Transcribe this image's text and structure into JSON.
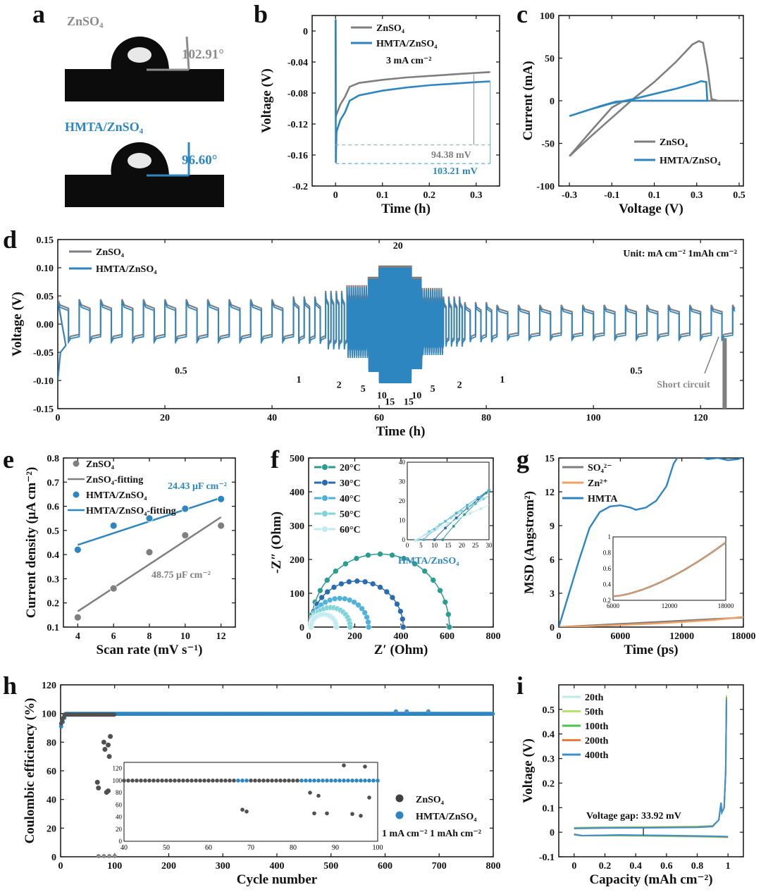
{
  "colors": {
    "zn": "#7f7f7f",
    "hm": "#2e86c1",
    "orange": "#f0a060"
  },
  "panels": [
    {
      "id": "a",
      "label": "a",
      "images": [
        {
          "title": "ZnSO₄",
          "angle": "102.91°",
          "color": "#8c8c8c"
        },
        {
          "title": "HMTA/ZnSO₄",
          "angle": "96.60°",
          "color": "#2e86c1"
        }
      ]
    },
    {
      "id": "b",
      "label": "b"
    },
    {
      "id": "c",
      "label": "c"
    },
    {
      "id": "d",
      "label": "d"
    },
    {
      "id": "e",
      "label": "e"
    },
    {
      "id": "f",
      "label": "f"
    },
    {
      "id": "g",
      "label": "g"
    },
    {
      "id": "h",
      "label": "h"
    },
    {
      "id": "i",
      "label": "i"
    }
  ],
  "chart_data": [
    {
      "id": "b",
      "type": "line",
      "xlabel": "Time (h)",
      "ylabel": "Voltage (V)",
      "xlim": [
        -0.05,
        0.35
      ],
      "ylim": [
        -0.2,
        0.02
      ],
      "xticks": [
        0,
        0.1,
        0.2,
        0.3
      ],
      "yticks": [
        0.0,
        -0.04,
        -0.08,
        -0.12,
        -0.16,
        -0.2
      ],
      "series": [
        {
          "name": "ZnSO₄",
          "color": "#7f7f7f",
          "points": [
            [
              0,
              0.015
            ],
            [
              0.0005,
              -0.11
            ],
            [
              0.01,
              -0.095
            ],
            [
              0.02,
              -0.085
            ],
            [
              0.03,
              -0.072
            ],
            [
              0.05,
              -0.067
            ],
            [
              0.1,
              -0.063
            ],
            [
              0.15,
              -0.06
            ],
            [
              0.2,
              -0.058
            ],
            [
              0.25,
              -0.056
            ],
            [
              0.3,
              -0.054
            ],
            [
              0.33,
              -0.053
            ]
          ]
        },
        {
          "name": "HMTA/ZnSO₄",
          "color": "#2e86c1",
          "points": [
            [
              0,
              0.015
            ],
            [
              0.0005,
              -0.17
            ],
            [
              0.002,
              -0.13
            ],
            [
              0.01,
              -0.115
            ],
            [
              0.02,
              -0.105
            ],
            [
              0.03,
              -0.09
            ],
            [
              0.05,
              -0.083
            ],
            [
              0.1,
              -0.077
            ],
            [
              0.15,
              -0.073
            ],
            [
              0.2,
              -0.07
            ],
            [
              0.25,
              -0.068
            ],
            [
              0.3,
              -0.066
            ],
            [
              0.33,
              -0.065
            ]
          ]
        }
      ],
      "annotations": [
        "3 mA cm⁻²",
        "94.38 mV",
        "103.21 mV"
      ]
    },
    {
      "id": "c",
      "type": "line",
      "xlabel": "Voltage (V)",
      "ylabel": "Current (mA)",
      "xlim": [
        -0.35,
        0.52
      ],
      "ylim": [
        -100,
        100
      ],
      "xticks": [
        -0.3,
        -0.1,
        0.1,
        0.3,
        0.5
      ],
      "xtick_labels": [
        "-0.3",
        "-0.1",
        "0.1",
        "0.3",
        "0.5"
      ],
      "yticks": [
        100,
        50,
        0,
        -50,
        -100
      ],
      "series": [
        {
          "name": "ZnSO₄",
          "color": "#7f7f7f",
          "points": [
            [
              -0.3,
              -65
            ],
            [
              -0.2,
              -42
            ],
            [
              -0.1,
              -20
            ],
            [
              0,
              2
            ],
            [
              0.1,
              22
            ],
            [
              0.2,
              45
            ],
            [
              0.28,
              66
            ],
            [
              0.31,
              70
            ],
            [
              0.33,
              68
            ],
            [
              0.35,
              40
            ],
            [
              0.37,
              2
            ],
            [
              0.4,
              0
            ],
            [
              0.5,
              0
            ],
            [
              0.3,
              0
            ],
            [
              0,
              0
            ],
            [
              -0.05,
              -1
            ],
            [
              -0.1,
              -8
            ],
            [
              -0.2,
              -36
            ],
            [
              -0.3,
              -65
            ]
          ]
        },
        {
          "name": "HMTA/ZnSO₄",
          "color": "#2e86c1",
          "points": [
            [
              -0.3,
              -18
            ],
            [
              -0.2,
              -10
            ],
            [
              -0.1,
              -3
            ],
            [
              0,
              2
            ],
            [
              0.1,
              8
            ],
            [
              0.2,
              14
            ],
            [
              0.3,
              21
            ],
            [
              0.32,
              23
            ],
            [
              0.345,
              22
            ],
            [
              0.35,
              0
            ],
            [
              0.3,
              0
            ],
            [
              0,
              0
            ],
            [
              -0.08,
              -1
            ],
            [
              -0.15,
              -6
            ],
            [
              -0.3,
              -18
            ]
          ]
        }
      ]
    },
    {
      "id": "d",
      "type": "line",
      "xlabel": "Time (h)",
      "ylabel": "Voltage (V)",
      "xlim": [
        0,
        128
      ],
      "ylim": [
        -0.15,
        0.15
      ],
      "xticks": [
        0,
        20,
        40,
        60,
        80,
        100,
        120
      ],
      "yticks": [
        0.15,
        0.1,
        0.05,
        0.0,
        -0.05,
        -0.1,
        -0.15
      ],
      "ytick_labels": [
        "0.15",
        "0.10",
        "0.05",
        "0.00",
        "-0.05",
        "-0.10",
        "-0.15"
      ],
      "series": [
        {
          "name": "ZnSO₄",
          "color": "#7f7f7f"
        },
        {
          "name": "HMTA/ZnSO₄",
          "color": "#2e86c1"
        }
      ],
      "segments": [
        {
          "t0": 0,
          "t1": 44,
          "amp_pos": 0.04,
          "amp_neg": -0.032,
          "period": 4
        },
        {
          "t0": 44,
          "t1": 50,
          "amp_pos": 0.045,
          "amp_neg": -0.035,
          "period": 2
        },
        {
          "t0": 50,
          "t1": 54,
          "amp_pos": 0.055,
          "amp_neg": -0.045,
          "period": 1
        },
        {
          "t0": 54,
          "t1": 58,
          "amp_pos": 0.065,
          "amp_neg": -0.06,
          "period": 0.4
        },
        {
          "t0": 58,
          "t1": 60,
          "amp_pos": 0.08,
          "amp_neg": -0.085,
          "period": 0.2
        },
        {
          "t0": 60,
          "t1": 66,
          "amp_pos": 0.1,
          "amp_neg": -0.105,
          "period": 0.13
        },
        {
          "t0": 66,
          "t1": 68,
          "amp_pos": 0.08,
          "amp_neg": -0.08,
          "period": 0.2
        },
        {
          "t0": 68,
          "t1": 72,
          "amp_pos": 0.06,
          "amp_neg": -0.055,
          "period": 0.4
        },
        {
          "t0": 72,
          "t1": 76,
          "amp_pos": 0.045,
          "amp_neg": -0.04,
          "period": 1
        },
        {
          "t0": 76,
          "t1": 82,
          "amp_pos": 0.035,
          "amp_neg": -0.032,
          "period": 2
        },
        {
          "t0": 82,
          "t1": 128,
          "amp_pos": 0.03,
          "amp_neg": -0.028,
          "period": 4
        }
      ],
      "annotations": [
        "Unit: mA cm⁻²  1mAh cm⁻²",
        "Short circuit"
      ],
      "rate_labels": [
        {
          "text": "0.5",
          "x": 23,
          "y": -0.088
        },
        {
          "text": "1",
          "x": 45,
          "y": -0.104
        },
        {
          "text": "2",
          "x": 52.5,
          "y": -0.113
        },
        {
          "text": "5",
          "x": 57,
          "y": -0.12
        },
        {
          "text": "10",
          "x": 60.5,
          "y": -0.132
        },
        {
          "text": "15",
          "x": 62,
          "y": -0.143
        },
        {
          "text": "20",
          "x": 63.5,
          "y": 0.134
        },
        {
          "text": "15",
          "x": 65.5,
          "y": -0.143
        },
        {
          "text": "10",
          "x": 67,
          "y": -0.132
        },
        {
          "text": "5",
          "x": 70,
          "y": -0.12
        },
        {
          "text": "2",
          "x": 75,
          "y": -0.113
        },
        {
          "text": "1",
          "x": 83,
          "y": -0.104
        },
        {
          "text": "0.5",
          "x": 108,
          "y": -0.088
        }
      ]
    },
    {
      "id": "e",
      "type": "scatter",
      "xlabel": "Scan rate (mV s⁻¹)",
      "ylabel": "Current density (μA cm⁻²)",
      "xlim": [
        3.2,
        12.8
      ],
      "ylim": [
        0.1,
        0.8
      ],
      "xticks": [
        4,
        6,
        8,
        10,
        12
      ],
      "yticks": [
        0.1,
        0.2,
        0.3,
        0.4,
        0.5,
        0.6,
        0.7,
        0.8
      ],
      "series": [
        {
          "name": "ZnSO₄",
          "color": "#7f7f7f",
          "x": [
            4,
            6,
            8,
            10,
            12
          ],
          "y": [
            0.14,
            0.26,
            0.41,
            0.48,
            0.52
          ]
        },
        {
          "name": "ZnSO₄-fitting",
          "color": "#7f7f7f",
          "fit": [
            [
              4,
              0.165
            ],
            [
              12,
              0.555
            ]
          ]
        },
        {
          "name": "HMTA/ZnSO₄",
          "color": "#2e86c1",
          "x": [
            4,
            6,
            8,
            10,
            12
          ],
          "y": [
            0.42,
            0.52,
            0.55,
            0.59,
            0.63
          ]
        },
        {
          "name": "HMTA/ZnSO₄-fitting",
          "color": "#2e86c1",
          "fit": [
            [
              4,
              0.44
            ],
            [
              12,
              0.635
            ]
          ]
        }
      ],
      "annotations": [
        "24.43 μF cm⁻²",
        "48.75 μF cm⁻²"
      ]
    },
    {
      "id": "f",
      "type": "scatter",
      "xlabel": "Z′ (Ohm)",
      "ylabel": "-Z″ (Ohm)",
      "xlim": [
        0,
        800
      ],
      "ylim": [
        0,
        500
      ],
      "xticks": [
        0,
        200,
        400,
        600,
        800
      ],
      "yticks": [
        0,
        100,
        200,
        300,
        400,
        500
      ],
      "series": [
        {
          "name": "20°C",
          "color": "#2a9d8f",
          "R": 600
        },
        {
          "name": "30°C",
          "color": "#2b6cb0",
          "R": 400
        },
        {
          "name": "40°C",
          "color": "#4fb3d9",
          "R": 250
        },
        {
          "name": "50°C",
          "color": "#7ed3d6",
          "R": 170
        },
        {
          "name": "60°C",
          "color": "#bfeaf0",
          "R": 110
        }
      ],
      "annotations": [
        "HMTA/ZnSO₄"
      ],
      "inset": {
        "xlim": [
          0,
          30
        ],
        "ylim": [
          0,
          40
        ],
        "xticks": [
          0,
          5,
          10,
          15,
          20,
          25,
          30
        ],
        "yticks": [
          0,
          10,
          20,
          30,
          40
        ]
      }
    },
    {
      "id": "g",
      "type": "line",
      "xlabel": "Time (ps)",
      "ylabel": "MSD (Angstrom²)",
      "xlim": [
        0,
        18000
      ],
      "ylim": [
        0,
        15
      ],
      "xticks": [
        0,
        6000,
        12000,
        18000
      ],
      "yticks": [
        0,
        3,
        6,
        9,
        12,
        15
      ],
      "series": [
        {
          "name": "SO₄²⁻",
          "color": "#7f7f7f",
          "points": [
            [
              0,
              0
            ],
            [
              18000,
              0.85
            ]
          ]
        },
        {
          "name": "Zn²⁺",
          "color": "#f0a060",
          "points": [
            [
              0,
              0
            ],
            [
              3000,
              0.08
            ],
            [
              6000,
              0.18
            ],
            [
              9000,
              0.3
            ],
            [
              12000,
              0.45
            ],
            [
              15000,
              0.62
            ],
            [
              18000,
              0.9
            ]
          ]
        },
        {
          "name": "HMTA",
          "color": "#2e86c1",
          "points": [
            [
              0,
              0
            ],
            [
              1000,
              3
            ],
            [
              2000,
              6
            ],
            [
              3000,
              8.8
            ],
            [
              4000,
              10.2
            ],
            [
              5000,
              10.7
            ],
            [
              6000,
              10.8
            ],
            [
              7000,
              10.6
            ],
            [
              7500,
              10.4
            ],
            [
              8500,
              10.6
            ],
            [
              9500,
              11.2
            ],
            [
              10500,
              12.5
            ],
            [
              11200,
              14.5
            ],
            [
              11700,
              15.2
            ],
            [
              12500,
              15.6
            ],
            [
              13500,
              15.2
            ],
            [
              14500,
              14.9
            ],
            [
              15500,
              15.0
            ],
            [
              16500,
              14.8
            ],
            [
              17500,
              14.9
            ],
            [
              18000,
              15.1
            ]
          ]
        }
      ],
      "inset": {
        "xlim": [
          6000,
          18000
        ],
        "ylim": [
          0.2,
          1.0
        ],
        "xticks": [
          6000,
          12000,
          18000
        ],
        "yticks": [
          0.2,
          0.4,
          0.6,
          0.8,
          1.0
        ]
      }
    },
    {
      "id": "h",
      "type": "scatter",
      "xlabel": "Cycle number",
      "ylabel": "Coulombic efficiency (%)",
      "xlim": [
        0,
        800
      ],
      "ylim": [
        0,
        120
      ],
      "xticks": [
        0,
        100,
        200,
        300,
        400,
        500,
        600,
        700,
        800
      ],
      "yticks": [
        0,
        20,
        40,
        60,
        80,
        100,
        120
      ],
      "series": [
        {
          "name": "ZnSO₄",
          "color": "#404040",
          "points": [
            [
              68,
              52
            ],
            [
              70,
              48
            ],
            [
              80,
              80
            ],
            [
              82,
              75
            ],
            [
              88,
              78
            ],
            [
              90,
              70
            ],
            [
              92,
              84
            ],
            [
              85,
              45
            ],
            [
              88,
              46
            ]
          ]
        },
        {
          "name": "HMTA/ZnSO₄",
          "color": "#2e86c1",
          "ce": 99.8
        }
      ],
      "annotations": [
        "1 mA cm⁻²  1 mAh cm⁻²"
      ],
      "inset": {
        "xlim": [
          40,
          100
        ],
        "ylim": [
          0,
          130
        ],
        "xticks": [
          40,
          50,
          60,
          70,
          80,
          90,
          100
        ],
        "yticks": [
          0,
          20,
          40,
          60,
          80,
          100,
          120
        ]
      }
    },
    {
      "id": "i",
      "type": "line",
      "xlabel": "Capacity (mAh cm⁻²)",
      "ylabel": "Voltage (V)",
      "xlim": [
        -0.1,
        1.1
      ],
      "ylim": [
        -0.1,
        0.6
      ],
      "xticks": [
        0.0,
        0.2,
        0.4,
        0.6,
        0.8,
        1.0
      ],
      "yticks": [
        -0.1,
        0.0,
        0.1,
        0.2,
        0.3,
        0.4,
        0.5
      ],
      "series": [
        {
          "name": "20th",
          "color": "#bdebe8"
        },
        {
          "name": "50th",
          "color": "#b7e36a"
        },
        {
          "name": "100th",
          "color": "#4cc24a"
        },
        {
          "name": "200th",
          "color": "#ef7b3a"
        },
        {
          "name": "400th",
          "color": "#3b8fd0"
        }
      ],
      "annotations": [
        "Voltage gap: 33.92 mV"
      ]
    }
  ]
}
